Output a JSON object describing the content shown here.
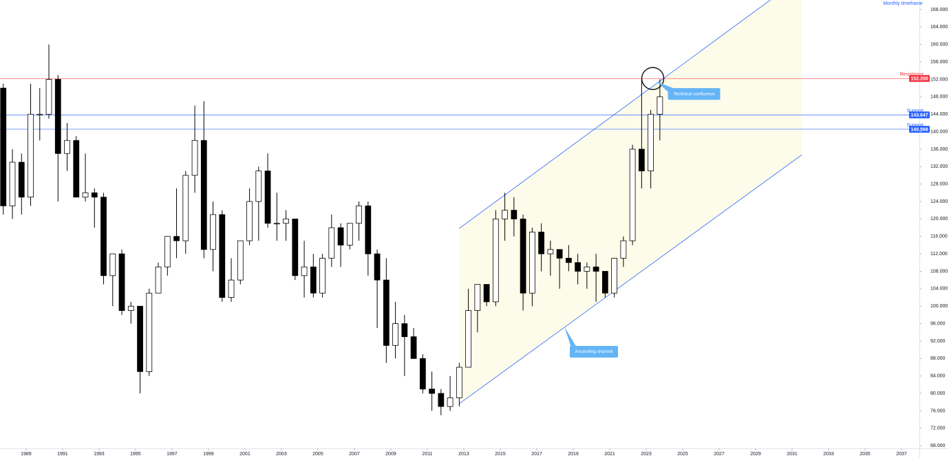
{
  "chart_data": {
    "type": "candlestick",
    "annotation_top": "Monthly timeframe",
    "xlim": [
      1987.57,
      2037.98
    ],
    "ylim": [
      67.4,
      170.2
    ],
    "xticks": [
      1989,
      1991,
      1993,
      1995,
      1997,
      1999,
      2001,
      2003,
      2005,
      2007,
      2009,
      2011,
      2013,
      2015,
      2017,
      2019,
      2021,
      2023,
      2025,
      2027,
      2029,
      2031,
      2033,
      2035,
      2037
    ],
    "yticks": [
      {
        "value": 68,
        "label": "68.000"
      },
      {
        "value": 72,
        "label": "72.000"
      },
      {
        "value": 76,
        "label": "76.000"
      },
      {
        "value": 80,
        "label": "80.000"
      },
      {
        "value": 84,
        "label": "84.000"
      },
      {
        "value": 88,
        "label": "88.000"
      },
      {
        "value": 92,
        "label": "92.000"
      },
      {
        "value": 96,
        "label": "96.000"
      },
      {
        "value": 100,
        "label": "100.000"
      },
      {
        "value": 104,
        "label": "104.000"
      },
      {
        "value": 108,
        "label": "108.000"
      },
      {
        "value": 112,
        "label": "112.000"
      },
      {
        "value": 116,
        "label": "116.000"
      },
      {
        "value": 120,
        "label": "120.000"
      },
      {
        "value": 124,
        "label": "124.000"
      },
      {
        "value": 128,
        "label": "128.000"
      },
      {
        "value": 132,
        "label": "132.000"
      },
      {
        "value": 136,
        "label": "136.000"
      },
      {
        "value": 140,
        "label": "140.000"
      },
      {
        "value": 144,
        "label": "144.000"
      },
      {
        "value": 148,
        "label": "148.000"
      },
      {
        "value": 152,
        "label": "152.000"
      },
      {
        "value": 156,
        "label": "156.000"
      },
      {
        "value": 160,
        "label": "160.000"
      },
      {
        "value": 164,
        "label": "164.000"
      },
      {
        "value": 168,
        "label": "168.000"
      }
    ],
    "up_color": "#ffffff",
    "down_color": "#000000",
    "x": [
      1987.75,
      1988.25,
      1988.75,
      1989.25,
      1989.75,
      1990.25,
      1990.75,
      1991.25,
      1991.75,
      1992.25,
      1992.75,
      1993.25,
      1993.75,
      1994.25,
      1994.75,
      1995.25,
      1995.75,
      1996.25,
      1996.75,
      1997.25,
      1997.75,
      1998.25,
      1998.75,
      1999.25,
      1999.75,
      2000.25,
      2000.75,
      2001.25,
      2001.75,
      2002.25,
      2002.75,
      2003.25,
      2003.75,
      2004.25,
      2004.75,
      2005.25,
      2005.75,
      2006.25,
      2006.75,
      2007.25,
      2007.75,
      2008.25,
      2008.75,
      2009.25,
      2009.75,
      2010.25,
      2010.75,
      2011.25,
      2011.75,
      2012.25,
      2012.75,
      2013.25,
      2013.75,
      2014.25,
      2014.75,
      2015.25,
      2015.75,
      2016.25,
      2016.75,
      2017.25,
      2017.75,
      2018.25,
      2018.75,
      2019.25,
      2019.75,
      2020.25,
      2020.75,
      2021.25,
      2021.75,
      2022.25,
      2022.75,
      2023.25,
      2023.75
    ],
    "open": [
      150,
      123,
      133,
      125,
      144,
      144,
      152,
      135,
      138,
      125,
      126,
      125,
      107,
      112,
      99,
      100,
      85,
      103,
      109,
      116,
      115,
      130,
      138,
      113,
      121,
      102,
      106,
      115,
      124,
      131,
      119,
      119,
      120,
      107,
      109,
      103,
      111,
      118,
      114,
      119,
      123,
      112,
      106,
      91,
      96,
      93,
      88,
      81,
      80,
      77,
      79,
      86,
      99,
      105,
      101,
      120,
      122,
      120,
      103,
      117,
      112,
      113,
      111,
      110,
      108,
      109,
      108,
      103,
      111,
      115,
      136,
      131,
      144
    ],
    "high": [
      151,
      136,
      135,
      151,
      150,
      160,
      153,
      142,
      139,
      135,
      127,
      126,
      111,
      113,
      101,
      100,
      104,
      110,
      116,
      127,
      131,
      146,
      147,
      124,
      122,
      111,
      115,
      127,
      132,
      135,
      126,
      122,
      120,
      115,
      112,
      112,
      121,
      119,
      119,
      124,
      124,
      113,
      111,
      101,
      98,
      95,
      89,
      85,
      81,
      84,
      87,
      104,
      105,
      105,
      122,
      126,
      125,
      121,
      118,
      119,
      115,
      113,
      114,
      112,
      110,
      112,
      108,
      111,
      116,
      137,
      152,
      145,
      152
    ],
    "low": [
      121,
      120,
      121,
      123,
      138,
      143,
      124,
      131,
      125,
      124,
      118,
      105,
      100,
      98,
      96,
      80,
      84,
      103,
      107,
      111,
      112,
      126,
      111,
      108,
      101,
      101,
      105,
      114,
      115,
      118,
      115,
      115,
      106,
      102,
      102,
      102,
      109,
      109,
      113,
      115,
      107,
      95,
      87,
      88,
      84,
      88,
      80,
      76,
      75,
      76,
      77,
      86,
      94,
      100,
      100,
      115,
      116,
      99,
      100,
      108,
      107,
      104,
      108,
      105,
      104,
      101,
      102,
      102,
      109,
      114,
      127,
      127,
      138
    ],
    "close": [
      123,
      133,
      125,
      144,
      144,
      152,
      135,
      138,
      125,
      126,
      125,
      107,
      112,
      99,
      100,
      85,
      103,
      109,
      116,
      115,
      130,
      138,
      113,
      121,
      102,
      106,
      115,
      124,
      131,
      119,
      119,
      120,
      107,
      109,
      103,
      111,
      118,
      114,
      119,
      123,
      112,
      106,
      91,
      96,
      93,
      88,
      81,
      80,
      77,
      79,
      86,
      99,
      105,
      101,
      120,
      122,
      120,
      103,
      117,
      112,
      113,
      111,
      110,
      108,
      109,
      108,
      103,
      111,
      115,
      136,
      131,
      144,
      148
    ],
    "levels": [
      {
        "label": "Resistance",
        "value": 152.2,
        "value_label": "152.200",
        "color": "#f23645"
      },
      {
        "label": "Support",
        "value": 143.847,
        "value_label": "143.847",
        "color": "#2962ff"
      },
      {
        "label": "Support",
        "value": 140.568,
        "value_label": "140.568",
        "color": "#2962ff"
      }
    ],
    "channel": {
      "label": "Ascending channel",
      "x": [
        2012.74,
        2031.53
      ],
      "upper": [
        117.8,
        175.5
      ],
      "lower": [
        77.6,
        134.7
      ],
      "color": "#2962ff",
      "fill": "#fdfbe9"
    },
    "confluence": {
      "label": "Technical confluence",
      "x": 2023.7,
      "y": 152.2
    }
  }
}
